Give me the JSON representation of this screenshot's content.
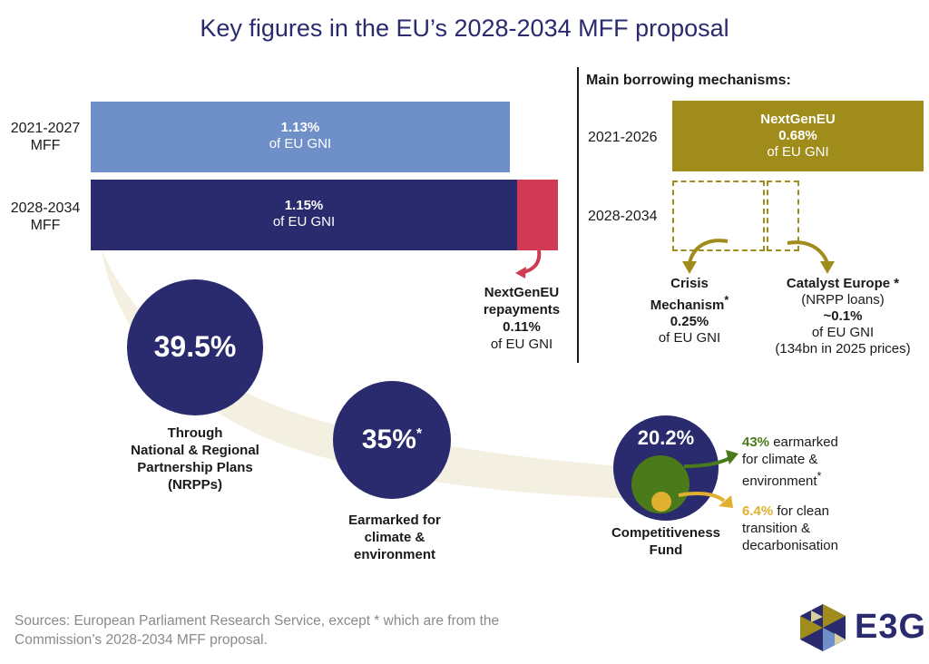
{
  "title": "Key figures in the EU’s 2028-2034 MFF proposal",
  "colors": {
    "navy": "#2a2a6e",
    "light_blue": "#6f8fc8",
    "red": "#d03a55",
    "olive": "#a08c1a",
    "green": "#4a7a1a",
    "yellow": "#e0b030",
    "swoosh": "#f3f0e2"
  },
  "mff": {
    "bars": [
      {
        "label_line1": "2021-2027",
        "label_line2": "MFF",
        "value_text": "1.13%",
        "unit_text": "of EU GNI"
      },
      {
        "label_line1": "2028-2034",
        "label_line2": "MFF",
        "value_text": "1.15%",
        "unit_text": "of EU GNI"
      }
    ],
    "repayments": {
      "line1": "NextGenEU",
      "line2": "repayments",
      "value": "0.11%",
      "unit": "of EU GNI"
    }
  },
  "borrowing": {
    "heading": "Main borrowing mechanisms:",
    "row1_label": "2021-2026",
    "row2_label": "2028-2034",
    "nextgen": {
      "name": "NextGenEU",
      "value": "0.68%",
      "unit": "of EU GNI"
    },
    "crisis": {
      "line1": "Crisis",
      "line2": "Mechanism",
      "star": "*",
      "value": "0.25%",
      "unit": "of EU GNI"
    },
    "catalyst": {
      "name": "Catalyst Europe",
      "star": "*",
      "sub": "(NRPP loans)",
      "value": "~0.1%",
      "unit": "of EU GNI",
      "note": "(134bn in 2025 prices)"
    }
  },
  "circles": {
    "nrpp": {
      "value": "39.5%",
      "line1": "Through",
      "line2": "National & Regional",
      "line3": "Partnership Plans",
      "line4": "(NRPPs)"
    },
    "climate": {
      "value": "35%",
      "star": "*",
      "line1": "Earmarked for",
      "line2": "climate &",
      "line3": "environment"
    },
    "competitiveness": {
      "value": "20.2%",
      "line1": "Competitiveness",
      "line2": "Fund"
    }
  },
  "earmarks": {
    "green": {
      "value": "43%",
      "text1": "earmarked",
      "text2": "for climate &",
      "text3": "environment",
      "star": "*"
    },
    "yellow": {
      "value": "6.4%",
      "text1": "for clean",
      "text2": "transition &",
      "text3": "decarbonisation"
    }
  },
  "chart_data": {
    "type": "bar",
    "categories": [
      "2021-2027 MFF",
      "2028-2034 MFF"
    ],
    "series": [
      {
        "name": "",
        "values": [
          1.13,
          1.15
        ]
      },
      {
        "name": "NextGenEU repayments",
        "values": [
          0,
          0.11
        ]
      }
    ],
    "ylabel": "of EU GNI"
  },
  "sources": {
    "line1": "Sources: European Parliament Research Service, except * which are from the",
    "line2": "Commission’s 2028-2034 MFF proposal."
  },
  "logo": {
    "text": "E3G"
  }
}
